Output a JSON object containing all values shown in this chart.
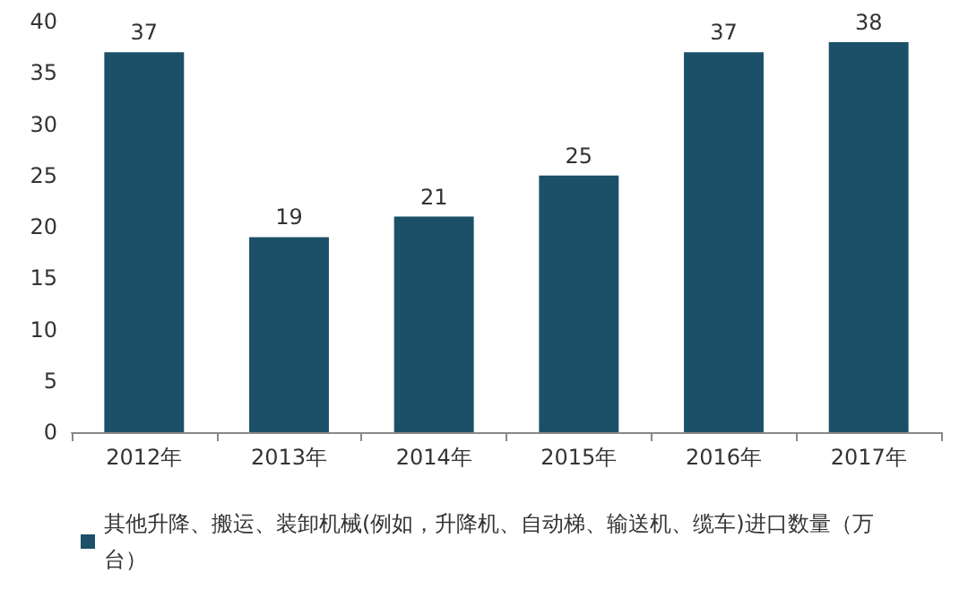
{
  "chart_data": {
    "type": "bar",
    "categories": [
      "2012年",
      "2013年",
      "2014年",
      "2015年",
      "2016年",
      "2017年"
    ],
    "series": [
      {
        "name": "其他升降、搬运、装卸机械(例如，升降机、自动梯、输送机、缆车)进口数量（万台）",
        "color": "#1b5068",
        "values": [
          37,
          19,
          21,
          25,
          37,
          38
        ]
      }
    ],
    "ylim": [
      0,
      40
    ],
    "yticks": [
      0,
      5,
      10,
      15,
      20,
      25,
      30,
      35,
      40
    ],
    "grid": false,
    "legend": "bottom",
    "data_labels": true
  }
}
